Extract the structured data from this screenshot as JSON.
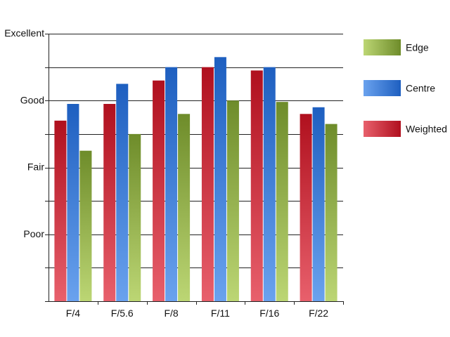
{
  "chart_data": {
    "type": "bar",
    "categories": [
      "F/4",
      "F/5.6",
      "F/8",
      "F/11",
      "F/16",
      "F/22"
    ],
    "series": [
      {
        "name": "Weighted",
        "values": [
          2.7,
          2.95,
          3.3,
          3.5,
          3.45,
          2.8
        ],
        "color_dark": "#b0101e",
        "color_light": "#e8606c"
      },
      {
        "name": "Centre",
        "values": [
          2.95,
          3.25,
          3.5,
          3.65,
          3.5,
          2.9
        ],
        "color_dark": "#1e5fc0",
        "color_light": "#6aa2ee"
      },
      {
        "name": "Edge",
        "values": [
          2.25,
          2.5,
          2.8,
          3.0,
          2.98,
          2.65
        ],
        "color_dark": "#6e8c2a",
        "color_light": "#bcd674"
      }
    ],
    "legend_order": [
      "Edge",
      "Centre",
      "Weighted"
    ],
    "y_tick_labels": [
      {
        "value": 1,
        "label": "Poor"
      },
      {
        "value": 2,
        "label": "Fair"
      },
      {
        "value": 3,
        "label": "Good"
      },
      {
        "value": 4,
        "label": "Excellent"
      }
    ],
    "ylim": [
      0,
      4
    ],
    "grid": true,
    "legend_position": "right",
    "title": "",
    "xlabel": "",
    "ylabel": ""
  }
}
